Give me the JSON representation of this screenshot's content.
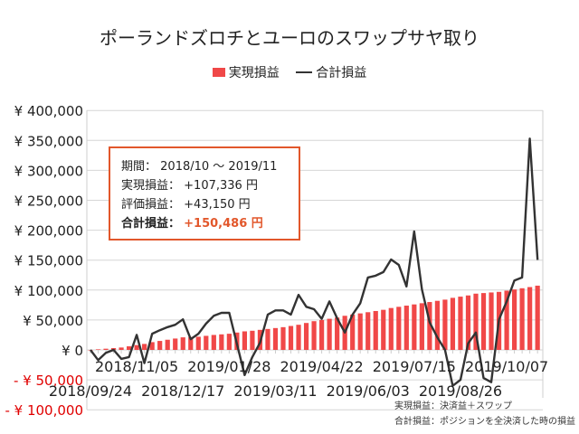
{
  "chart_data": {
    "type": "bar+line",
    "title": "ポーランドズロチとユーロのスワップサヤ取り",
    "legend": {
      "placement": "top",
      "entries": [
        "実現損益",
        "合計損益"
      ]
    },
    "ylim": [
      -100000,
      400000
    ],
    "yticks": [
      400000,
      350000,
      300000,
      250000,
      200000,
      150000,
      100000,
      50000,
      0,
      -50000,
      -100000
    ],
    "ytick_labels": [
      "¥ 400,000",
      "¥ 350,000",
      "¥ 300,000",
      "¥ 250,000",
      "¥ 200,000",
      "¥ 150,000",
      "¥ 100,000",
      "¥ 50,000",
      "¥ 0",
      "- ¥ 50,000",
      "- ¥ 100,000"
    ],
    "xtick_labels": [
      "2018/09/24",
      "2018/11/05",
      "2018/12/17",
      "2019/01/28",
      "2019/03/11",
      "2019/04/22",
      "2019/06/03",
      "2019/07/15",
      "2019/08/26",
      "2019/10/07"
    ],
    "grid": true,
    "x": [
      "2018/09/24",
      "2018/10/01",
      "2018/10/08",
      "2018/10/15",
      "2018/10/22",
      "2018/10/29",
      "2018/11/05",
      "2018/11/12",
      "2018/11/19",
      "2018/11/26",
      "2018/12/03",
      "2018/12/10",
      "2018/12/17",
      "2018/12/24",
      "2018/12/31",
      "2019/01/07",
      "2019/01/14",
      "2019/01/21",
      "2019/01/28",
      "2019/02/04",
      "2019/02/11",
      "2019/02/18",
      "2019/02/25",
      "2019/03/04",
      "2019/03/11",
      "2019/03/18",
      "2019/03/25",
      "2019/04/01",
      "2019/04/08",
      "2019/04/15",
      "2019/04/22",
      "2019/04/29",
      "2019/05/06",
      "2019/05/13",
      "2019/05/20",
      "2019/05/27",
      "2019/06/03",
      "2019/06/10",
      "2019/06/17",
      "2019/06/24",
      "2019/07/01",
      "2019/07/08",
      "2019/07/15",
      "2019/07/22",
      "2019/07/29",
      "2019/08/05",
      "2019/08/12",
      "2019/08/19",
      "2019/08/26",
      "2019/09/02",
      "2019/09/09",
      "2019/09/16",
      "2019/09/23",
      "2019/09/30",
      "2019/10/07",
      "2019/10/14",
      "2019/10/21",
      "2019/10/28",
      "2019/11/04"
    ],
    "series": [
      {
        "name": "実現損益",
        "type": "bar",
        "color": "#f04848",
        "values": [
          0,
          1000,
          2000,
          3000,
          4000,
          6000,
          8000,
          10000,
          13000,
          15000,
          17000,
          19000,
          21000,
          21500,
          22000,
          23500,
          25000,
          26000,
          27000,
          29000,
          31000,
          32000,
          33500,
          35000,
          36500,
          38000,
          40000,
          42000,
          45000,
          48000,
          50000,
          52000,
          54000,
          57000,
          59000,
          61000,
          63000,
          65000,
          67000,
          70000,
          72000,
          74000,
          76000,
          78000,
          80000,
          82000,
          84000,
          87000,
          89000,
          91000,
          94000,
          95000,
          96000,
          97000,
          99000,
          101000,
          103000,
          105000,
          107336
        ]
      },
      {
        "name": "合計損益",
        "type": "line",
        "color": "#333333",
        "values": [
          0,
          -17000,
          -5000,
          0,
          -15000,
          -12000,
          25000,
          -22000,
          27000,
          33000,
          38000,
          42000,
          51000,
          18000,
          27000,
          44000,
          57000,
          62000,
          62000,
          10000,
          -42000,
          -12000,
          12000,
          59000,
          66000,
          66000,
          59000,
          92000,
          72000,
          68000,
          52000,
          81000,
          53000,
          29000,
          59000,
          78000,
          121000,
          124000,
          130000,
          151000,
          142000,
          106000,
          198000,
          101000,
          46000,
          21000,
          0,
          -60000,
          -50000,
          11000,
          29000,
          -47000,
          -54000,
          51000,
          81000,
          116000,
          121000,
          353000,
          150486
        ]
      }
    ]
  },
  "infobox": {
    "period_label": "期間：",
    "period_value": "2018/10 ～ 2019/11",
    "realized_label": "実現損益：",
    "realized_value": "+107,336 円",
    "unrealized_label": "評価損益：",
    "unrealized_value": "+43,150 円",
    "total_label": "合計損益：",
    "total_value": "+150,486 円"
  },
  "notes": [
    "実現損益：決済益＋スワップ",
    "合計損益：ポジションを全決済した時の損益"
  ],
  "colors": {
    "bar": "#f04848",
    "line": "#333333",
    "negative_label": "#e00000",
    "accent": "#e2572b"
  }
}
